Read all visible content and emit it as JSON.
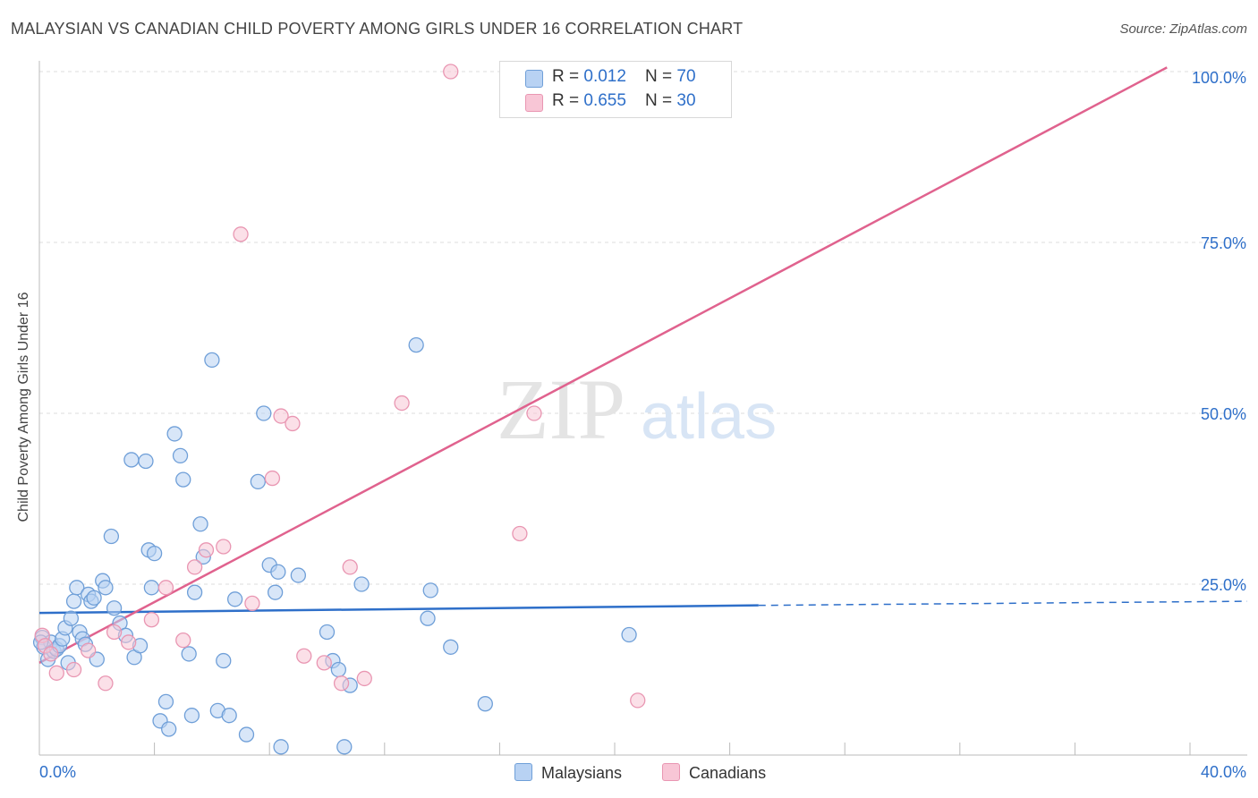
{
  "title": "MALAYSIAN VS CANADIAN CHILD POVERTY AMONG GIRLS UNDER 16 CORRELATION CHART",
  "source": "Source: ZipAtlas.com",
  "watermark": {
    "zip": "ZIP",
    "atlas": "atlas"
  },
  "colors": {
    "malaysians_fill": "#b8d2f3",
    "malaysians_stroke": "#6f9fd8",
    "malaysians_line": "#2e6fc9",
    "canadians_fill": "#f8c6d6",
    "canadians_stroke": "#e996b2",
    "canadians_line": "#e0628e",
    "value_text": "#2e6fc9",
    "grid": "#dddddd"
  },
  "legend": {
    "malaysians": {
      "r_label": "R = ",
      "r_value": "0.012",
      "n_label": "N = ",
      "n_value": "70"
    },
    "canadians": {
      "r_label": "R = ",
      "r_value": "0.655",
      "n_label": "N = ",
      "n_value": "30"
    }
  },
  "bottom_legend": {
    "malaysians": "Malaysians",
    "canadians": "Canadians"
  },
  "chart_data": {
    "type": "scatter",
    "title": "MALAYSIAN VS CANADIAN CHILD POVERTY AMONG GIRLS UNDER 16 CORRELATION CHART",
    "xlabel": "",
    "ylabel": "Child Poverty Among Girls Under 16",
    "xlim": [
      0,
      40
    ],
    "ylim": [
      0,
      100
    ],
    "x_tick_labels": {
      "min": "0.0%",
      "max": "40.0%"
    },
    "y_ticks": [
      {
        "value": 25,
        "label": "25.0%"
      },
      {
        "value": 50,
        "label": "50.0%"
      },
      {
        "value": 75,
        "label": "75.0%"
      },
      {
        "value": 100,
        "label": "100.0%"
      }
    ],
    "x_minor_ticks": [
      4,
      8,
      12,
      16,
      20,
      24,
      28,
      32,
      36,
      40
    ],
    "grid": true,
    "series": [
      {
        "name": "Malaysians",
        "r": 0.012,
        "n": 70,
        "trend": {
          "x0": 0,
          "y0": 20.8,
          "x1": 25,
          "y1": 21.9,
          "dashed_to_x": 40,
          "dashed_to_y": 22.5
        },
        "points": [
          [
            0.1,
            17.2
          ],
          [
            0.15,
            15.8
          ],
          [
            0.3,
            14
          ],
          [
            0.4,
            16.5
          ],
          [
            0.5,
            15.2
          ],
          [
            0.6,
            15.5
          ],
          [
            0.7,
            16
          ],
          [
            0.8,
            17
          ],
          [
            0.9,
            18.6
          ],
          [
            1.0,
            13.5
          ],
          [
            1.1,
            20
          ],
          [
            1.2,
            22.5
          ],
          [
            1.3,
            24.5
          ],
          [
            1.4,
            18
          ],
          [
            1.5,
            17
          ],
          [
            1.7,
            23.5
          ],
          [
            1.8,
            22.5
          ],
          [
            1.9,
            23
          ],
          [
            2.0,
            14
          ],
          [
            2.2,
            25.5
          ],
          [
            2.3,
            24.5
          ],
          [
            2.6,
            21.5
          ],
          [
            2.8,
            19.3
          ],
          [
            3.0,
            17.5
          ],
          [
            3.3,
            14.3
          ],
          [
            3.5,
            16
          ],
          [
            3.7,
            43
          ],
          [
            3.8,
            30
          ],
          [
            3.9,
            24.5
          ],
          [
            4.0,
            29.5
          ],
          [
            4.2,
            5
          ],
          [
            4.4,
            7.8
          ],
          [
            4.5,
            3.8
          ],
          [
            4.7,
            47
          ],
          [
            4.9,
            43.8
          ],
          [
            5.0,
            40.3
          ],
          [
            5.2,
            14.8
          ],
          [
            5.3,
            5.8
          ],
          [
            5.4,
            23.8
          ],
          [
            5.6,
            33.8
          ],
          [
            5.7,
            29
          ],
          [
            6.0,
            57.8
          ],
          [
            6.2,
            6.5
          ],
          [
            6.4,
            13.8
          ],
          [
            6.6,
            5.8
          ],
          [
            6.8,
            22.8
          ],
          [
            7.2,
            3
          ],
          [
            7.6,
            40
          ],
          [
            7.8,
            50
          ],
          [
            8.0,
            27.8
          ],
          [
            8.2,
            23.8
          ],
          [
            8.3,
            26.8
          ],
          [
            8.4,
            1.2
          ],
          [
            9.0,
            26.3
          ],
          [
            10.0,
            18
          ],
          [
            10.2,
            13.8
          ],
          [
            10.4,
            12.5
          ],
          [
            10.6,
            1.2
          ],
          [
            10.8,
            10.2
          ],
          [
            11.2,
            25
          ],
          [
            13.1,
            60
          ],
          [
            13.5,
            20
          ],
          [
            13.6,
            24.1
          ],
          [
            14.3,
            15.8
          ],
          [
            15.5,
            7.5
          ],
          [
            20.5,
            17.6
          ],
          [
            0.05,
            16.5
          ],
          [
            1.6,
            16.2
          ],
          [
            3.2,
            43.2
          ],
          [
            2.5,
            32
          ]
        ]
      },
      {
        "name": "Canadians",
        "r": 0.655,
        "n": 30,
        "trend": {
          "x0": 0,
          "y0": 13.5,
          "x1": 39.2,
          "y1": 100.6
        },
        "points": [
          [
            0.1,
            17.5
          ],
          [
            0.2,
            16
          ],
          [
            0.4,
            14.8
          ],
          [
            0.6,
            12
          ],
          [
            1.2,
            12.5
          ],
          [
            1.7,
            15.3
          ],
          [
            2.3,
            10.5
          ],
          [
            2.6,
            18
          ],
          [
            3.1,
            16.5
          ],
          [
            3.9,
            19.8
          ],
          [
            4.4,
            24.5
          ],
          [
            5.0,
            16.8
          ],
          [
            5.4,
            27.5
          ],
          [
            5.8,
            30
          ],
          [
            6.4,
            30.5
          ],
          [
            7.0,
            76.2
          ],
          [
            7.4,
            22.2
          ],
          [
            8.1,
            40.5
          ],
          [
            8.4,
            49.6
          ],
          [
            8.8,
            48.5
          ],
          [
            9.2,
            14.5
          ],
          [
            9.9,
            13.5
          ],
          [
            10.5,
            10.5
          ],
          [
            10.8,
            27.5
          ],
          [
            11.3,
            11.2
          ],
          [
            12.6,
            51.5
          ],
          [
            14.3,
            100
          ],
          [
            16.7,
            32.4
          ],
          [
            17.2,
            50
          ],
          [
            20.8,
            8
          ]
        ]
      }
    ]
  }
}
